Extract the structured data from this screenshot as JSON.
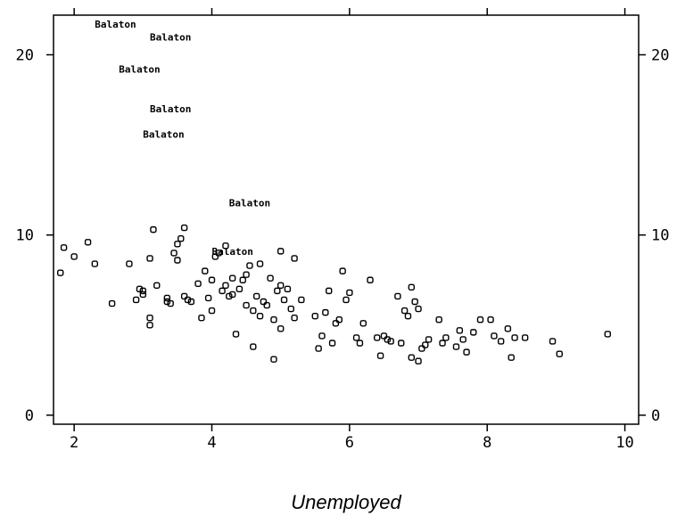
{
  "chart_data": {
    "type": "scatter",
    "title": "",
    "xlabel": "Unemployed",
    "ylabel": "",
    "xlim": [
      1.7,
      10.2
    ],
    "ylim": [
      -0.5,
      22.2
    ],
    "grid": false,
    "xticks": [
      2,
      4,
      6,
      8,
      10
    ],
    "xtick_labels": [
      "2",
      "4",
      "6",
      "8",
      "10"
    ],
    "yticks": [
      0,
      10,
      20
    ],
    "ytick_labels": [
      "0",
      "10",
      "20"
    ],
    "labeled_points": [
      {
        "x": 2.6,
        "y": 21.7,
        "label": "Balaton"
      },
      {
        "x": 3.4,
        "y": 21.0,
        "label": "Balaton"
      },
      {
        "x": 2.95,
        "y": 19.2,
        "label": "Balaton"
      },
      {
        "x": 3.4,
        "y": 17.0,
        "label": "Balaton"
      },
      {
        "x": 3.3,
        "y": 15.6,
        "label": "Balaton"
      },
      {
        "x": 4.55,
        "y": 11.8,
        "label": "Balaton"
      },
      {
        "x": 4.3,
        "y": 9.1,
        "label": "Balaton"
      }
    ],
    "points": [
      [
        1.8,
        7.9
      ],
      [
        1.85,
        9.3
      ],
      [
        2.0,
        8.8
      ],
      [
        2.2,
        9.6
      ],
      [
        2.3,
        8.4
      ],
      [
        2.55,
        6.2
      ],
      [
        2.8,
        8.4
      ],
      [
        2.9,
        6.4
      ],
      [
        2.95,
        7.0
      ],
      [
        3.0,
        6.7
      ],
      [
        3.0,
        6.9
      ],
      [
        3.1,
        8.7
      ],
      [
        3.1,
        5.4
      ],
      [
        3.1,
        5.0
      ],
      [
        3.15,
        10.3
      ],
      [
        3.2,
        7.2
      ],
      [
        3.35,
        6.3
      ],
      [
        3.35,
        6.5
      ],
      [
        3.4,
        6.2
      ],
      [
        3.45,
        9.0
      ],
      [
        3.5,
        8.6
      ],
      [
        3.5,
        9.5
      ],
      [
        3.55,
        9.8
      ],
      [
        3.6,
        10.4
      ],
      [
        3.6,
        6.6
      ],
      [
        3.65,
        6.4
      ],
      [
        3.7,
        6.3
      ],
      [
        3.8,
        7.3
      ],
      [
        3.85,
        5.4
      ],
      [
        3.9,
        8.0
      ],
      [
        3.95,
        6.5
      ],
      [
        4.0,
        5.8
      ],
      [
        4.0,
        7.5
      ],
      [
        4.05,
        8.8
      ],
      [
        4.1,
        9.0
      ],
      [
        4.15,
        6.9
      ],
      [
        4.2,
        7.2
      ],
      [
        4.2,
        9.4
      ],
      [
        4.25,
        6.6
      ],
      [
        4.3,
        7.6
      ],
      [
        4.3,
        6.7
      ],
      [
        4.35,
        4.5
      ],
      [
        4.4,
        7.0
      ],
      [
        4.45,
        7.5
      ],
      [
        4.5,
        7.8
      ],
      [
        4.5,
        6.1
      ],
      [
        4.55,
        8.3
      ],
      [
        4.6,
        5.8
      ],
      [
        4.6,
        3.8
      ],
      [
        4.65,
        6.6
      ],
      [
        4.7,
        8.4
      ],
      [
        4.7,
        5.5
      ],
      [
        4.75,
        6.3
      ],
      [
        4.8,
        6.1
      ],
      [
        4.85,
        7.6
      ],
      [
        4.9,
        3.1
      ],
      [
        4.9,
        5.3
      ],
      [
        4.95,
        6.9
      ],
      [
        5.0,
        7.2
      ],
      [
        5.0,
        4.8
      ],
      [
        5.0,
        9.1
      ],
      [
        5.05,
        6.4
      ],
      [
        5.1,
        7.0
      ],
      [
        5.15,
        5.9
      ],
      [
        5.2,
        8.7
      ],
      [
        5.2,
        5.4
      ],
      [
        5.3,
        6.4
      ],
      [
        5.5,
        5.5
      ],
      [
        5.55,
        3.7
      ],
      [
        5.6,
        4.4
      ],
      [
        5.65,
        5.7
      ],
      [
        5.7,
        6.9
      ],
      [
        5.75,
        4.0
      ],
      [
        5.8,
        5.1
      ],
      [
        5.85,
        5.3
      ],
      [
        5.9,
        8.0
      ],
      [
        5.95,
        6.4
      ],
      [
        6.0,
        6.8
      ],
      [
        6.1,
        4.3
      ],
      [
        6.15,
        4.0
      ],
      [
        6.2,
        5.1
      ],
      [
        6.3,
        7.5
      ],
      [
        6.4,
        4.3
      ],
      [
        6.45,
        3.3
      ],
      [
        6.5,
        4.4
      ],
      [
        6.55,
        4.2
      ],
      [
        6.6,
        4.1
      ],
      [
        6.7,
        6.6
      ],
      [
        6.75,
        4.0
      ],
      [
        6.8,
        5.8
      ],
      [
        6.85,
        5.5
      ],
      [
        6.9,
        7.1
      ],
      [
        6.9,
        3.2
      ],
      [
        6.95,
        6.3
      ],
      [
        7.0,
        5.9
      ],
      [
        7.0,
        3.0
      ],
      [
        7.05,
        3.7
      ],
      [
        7.1,
        3.9
      ],
      [
        7.15,
        4.2
      ],
      [
        7.3,
        5.3
      ],
      [
        7.35,
        4.0
      ],
      [
        7.4,
        4.3
      ],
      [
        7.55,
        3.8
      ],
      [
        7.6,
        4.7
      ],
      [
        7.65,
        4.2
      ],
      [
        7.7,
        3.5
      ],
      [
        7.8,
        4.6
      ],
      [
        7.9,
        5.3
      ],
      [
        8.05,
        5.3
      ],
      [
        8.1,
        4.4
      ],
      [
        8.2,
        4.1
      ],
      [
        8.3,
        4.8
      ],
      [
        8.35,
        3.2
      ],
      [
        8.4,
        4.3
      ],
      [
        8.55,
        4.3
      ],
      [
        8.95,
        4.1
      ],
      [
        9.05,
        3.4
      ],
      [
        9.75,
        4.5
      ]
    ]
  }
}
